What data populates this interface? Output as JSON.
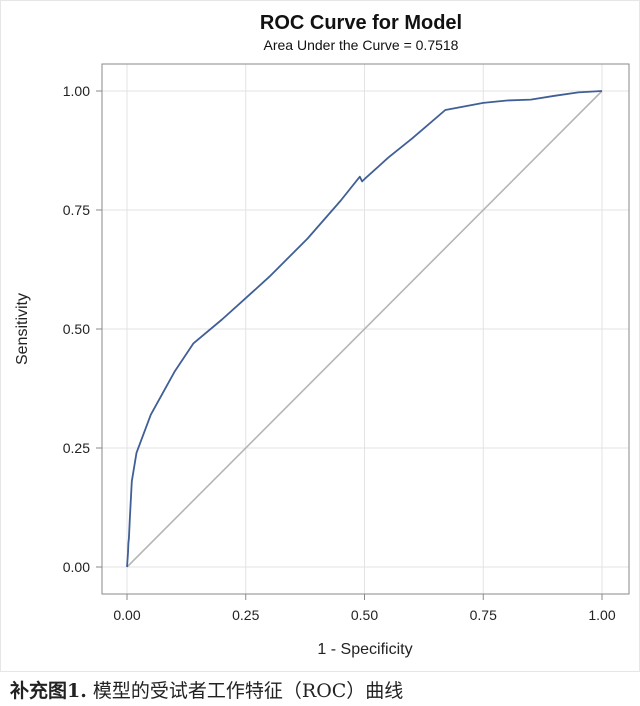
{
  "chart_data": {
    "type": "line",
    "title": "ROC Curve for Model",
    "subtitle": "Area Under the Curve = 0.7518",
    "xlabel": "1 - Specificity",
    "ylabel": "Sensitivity",
    "xlim": [
      0,
      1
    ],
    "ylim": [
      0,
      1
    ],
    "xticks": [
      "0.00",
      "0.25",
      "0.50",
      "0.75",
      "1.00"
    ],
    "yticks": [
      "0.00",
      "0.25",
      "0.50",
      "0.75",
      "1.00"
    ],
    "grid": true,
    "legend": "none",
    "colors": {
      "curve": "#3f5f96",
      "reference": "#b5b5b5",
      "grid": "#e3e3e3",
      "frame": "#8a8a8a"
    },
    "series": [
      {
        "x": [
          0.0,
          0.002,
          0.003,
          0.004,
          0.006,
          0.01,
          0.02,
          0.05,
          0.1,
          0.14,
          0.2,
          0.25,
          0.3,
          0.38,
          0.45,
          0.49,
          0.495,
          0.5,
          0.55,
          0.6,
          0.67,
          0.75,
          0.8,
          0.85,
          0.9,
          0.95,
          1.0
        ],
        "y": [
          0.0,
          0.03,
          0.05,
          0.06,
          0.1,
          0.18,
          0.24,
          0.32,
          0.41,
          0.47,
          0.52,
          0.565,
          0.61,
          0.69,
          0.77,
          0.82,
          0.81,
          0.815,
          0.86,
          0.9,
          0.96,
          0.975,
          0.98,
          0.982,
          0.99,
          0.997,
          1.0
        ]
      },
      {
        "x": [
          0,
          1
        ],
        "y": [
          0,
          1
        ]
      }
    ]
  },
  "caption": {
    "lead": "补充图1.",
    "text": " 模型的受试者工作特征（ROC）曲线"
  }
}
